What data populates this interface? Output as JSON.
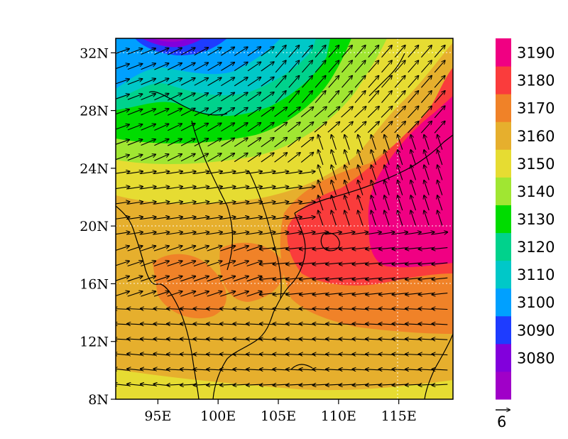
{
  "map": {
    "lat_ticks": [
      {
        "value": 32,
        "label": "32N"
      },
      {
        "value": 28,
        "label": "28N"
      },
      {
        "value": 24,
        "label": "24N"
      },
      {
        "value": 20,
        "label": "20N"
      },
      {
        "value": 16,
        "label": "16N"
      },
      {
        "value": 12,
        "label": "12N"
      },
      {
        "value": 8,
        "label": "8N"
      }
    ],
    "lon_ticks": [
      {
        "value": 95,
        "label": "95E"
      },
      {
        "value": 100,
        "label": "100E"
      },
      {
        "value": 105,
        "label": "105E"
      },
      {
        "value": 110,
        "label": "110E"
      },
      {
        "value": 115,
        "label": "115E"
      }
    ],
    "lon_range": [
      91.5,
      119.5
    ],
    "lat_range": [
      8,
      33
    ],
    "reference_vector": {
      "magnitude": 6,
      "label": "6"
    },
    "colorbar": {
      "levels": [
        3080,
        3090,
        3100,
        3110,
        3120,
        3130,
        3140,
        3150,
        3160,
        3170,
        3180,
        3190
      ],
      "labels": [
        "3190",
        "3180",
        "3170",
        "3160",
        "3150",
        "3140",
        "3130",
        "3120",
        "3110",
        "3100",
        "3090",
        "3080"
      ],
      "colors": [
        "#a000c8",
        "#8200dc",
        "#1e3cff",
        "#00a0ff",
        "#00c8c8",
        "#00d28c",
        "#00dc00",
        "#a0e632",
        "#e6dc32",
        "#e6af2d",
        "#f08228",
        "#fa3c3c",
        "#f00082"
      ]
    }
  }
}
